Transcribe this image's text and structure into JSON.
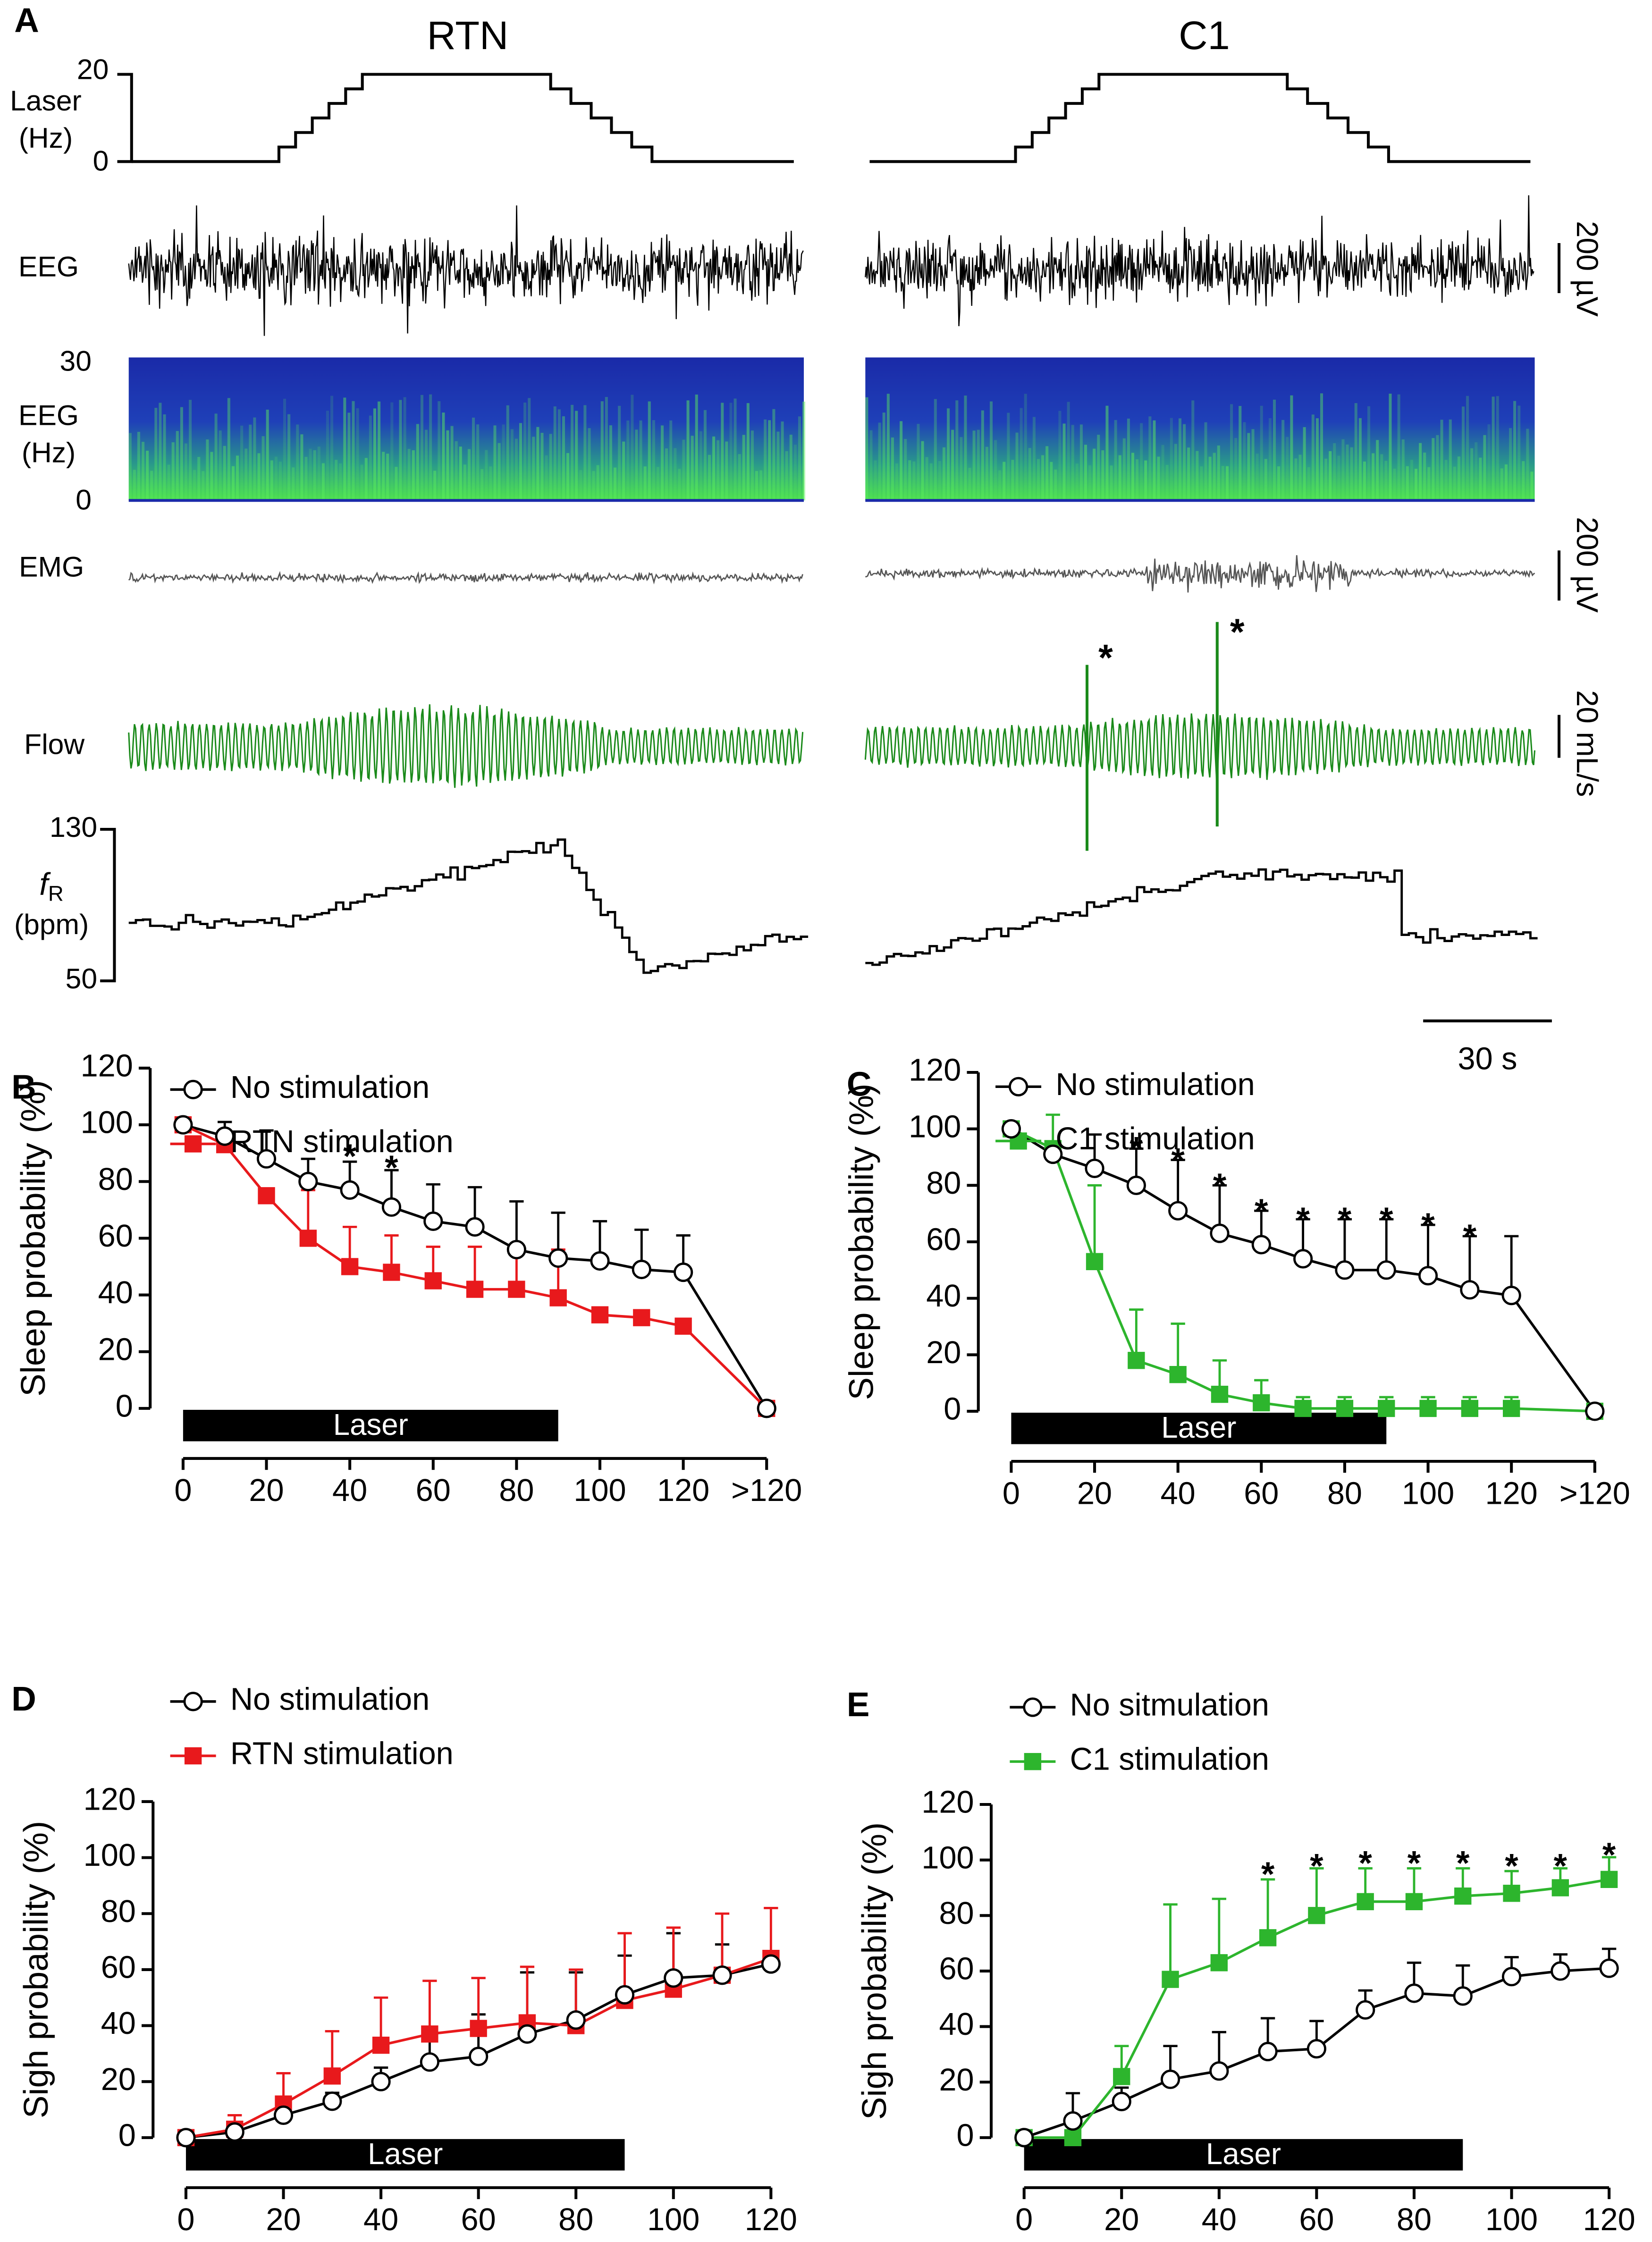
{
  "panel_a": {
    "letter": "A",
    "titles": [
      "RTN",
      "C1"
    ],
    "laser_label": [
      "Laser",
      "(Hz)"
    ],
    "laser_ticks": [
      "20",
      "0"
    ],
    "eeg_label": "EEG",
    "spec_label": [
      "EEG",
      "(Hz)"
    ],
    "spec_ticks": [
      "30",
      "0"
    ],
    "emg_label": "EMG",
    "flow_label": "Flow",
    "fr_label": [
      "f",
      "R",
      "(bpm)"
    ],
    "fr_ticks": [
      "130",
      "50"
    ],
    "eeg_scale": "200 µV",
    "emg_scale": "200 µV",
    "flow_scale": "20 mL/s",
    "time_scale": "30 s",
    "flow_marks": [
      "*",
      "*"
    ]
  },
  "chart_data": [
    {
      "type": "line",
      "panel": "B",
      "ylabel": "Sleep probability  (%)",
      "x": [
        0,
        10,
        20,
        30,
        40,
        50,
        60,
        70,
        80,
        90,
        100,
        110,
        120,
        140
      ],
      "xlim": [
        0,
        140
      ],
      "xticks": [
        0,
        20,
        40,
        60,
        80,
        100,
        120,
        {
          "value": 140,
          "label": ">120"
        }
      ],
      "ylim": [
        0,
        120
      ],
      "yticks": [
        0,
        20,
        40,
        60,
        80,
        100,
        120
      ],
      "laser": {
        "label": "Laser",
        "start": 0,
        "end": 90
      },
      "series": [
        {
          "name": "No stimulation",
          "color": "#000000",
          "marker": "circle",
          "values": [
            100,
            96,
            88,
            80,
            77,
            71,
            66,
            64,
            56,
            53,
            52,
            49,
            48,
            0
          ],
          "errors": [
            0,
            5,
            10,
            8,
            10,
            13,
            13,
            14,
            17,
            16,
            14,
            14,
            13,
            0
          ]
        },
        {
          "name": "RTN stimulation",
          "color": "#e8191c",
          "marker": "square",
          "values": [
            100,
            93,
            75,
            60,
            50,
            48,
            45,
            42,
            42,
            39,
            33,
            32,
            29,
            0
          ],
          "errors": [
            0,
            2,
            0,
            17,
            14,
            13,
            12,
            15,
            15,
            17,
            0,
            0,
            0,
            0
          ]
        }
      ],
      "annotations": [
        {
          "x": 40,
          "y": 91,
          "text": "*"
        },
        {
          "x": 50,
          "y": 87,
          "text": "*"
        }
      ]
    },
    {
      "type": "line",
      "panel": "C",
      "ylabel": "Sleep probability  (%)",
      "x": [
        0,
        10,
        20,
        30,
        40,
        50,
        60,
        70,
        80,
        90,
        100,
        110,
        120,
        140
      ],
      "xlim": [
        0,
        140
      ],
      "xticks": [
        0,
        20,
        40,
        60,
        80,
        100,
        120,
        {
          "value": 140,
          "label": ">120"
        }
      ],
      "ylim": [
        0,
        120
      ],
      "yticks": [
        0,
        20,
        40,
        60,
        80,
        100,
        120
      ],
      "laser": {
        "label": "Laser",
        "start": 0,
        "end": 90
      },
      "series": [
        {
          "name": "No stimulation",
          "color": "#000000",
          "marker": "circle",
          "values": [
            100,
            91,
            86,
            80,
            71,
            63,
            59,
            54,
            50,
            50,
            48,
            43,
            41,
            0
          ],
          "errors": [
            0,
            3,
            12,
            13,
            18,
            17,
            12,
            14,
            18,
            18,
            18,
            19,
            21,
            0
          ]
        },
        {
          "name": "C1 stimulation",
          "color": "#2db52d",
          "marker": "square",
          "values": [
            100,
            93,
            53,
            18,
            13,
            6,
            3,
            1,
            1,
            1,
            1,
            1,
            1,
            0
          ],
          "errors": [
            0,
            12,
            27,
            18,
            18,
            12,
            8,
            4,
            4,
            4,
            4,
            4,
            4,
            0
          ]
        }
      ],
      "annotations": [
        {
          "x": 30,
          "y": 95,
          "text": "*"
        },
        {
          "x": 40,
          "y": 91,
          "text": "*"
        },
        {
          "x": 50,
          "y": 82,
          "text": "*"
        },
        {
          "x": 60,
          "y": 73,
          "text": "*"
        },
        {
          "x": 70,
          "y": 70,
          "text": "*"
        },
        {
          "x": 80,
          "y": 70,
          "text": "*"
        },
        {
          "x": 90,
          "y": 70,
          "text": "*"
        },
        {
          "x": 100,
          "y": 68,
          "text": "*"
        },
        {
          "x": 110,
          "y": 64,
          "text": "*"
        }
      ]
    },
    {
      "type": "line",
      "panel": "D",
      "ylabel": "Sigh probability  (%)",
      "x": [
        0,
        10,
        20,
        30,
        40,
        50,
        60,
        70,
        80,
        90,
        100,
        110,
        120
      ],
      "xlim": [
        0,
        120
      ],
      "xticks": [
        0,
        20,
        40,
        60,
        80,
        100,
        120
      ],
      "ylim": [
        0,
        120
      ],
      "yticks": [
        0,
        20,
        40,
        60,
        80,
        100,
        120
      ],
      "laser": {
        "label": "Laser",
        "start": 0,
        "end": 90
      },
      "series": [
        {
          "name": "No stimulation",
          "color": "#000000",
          "marker": "circle",
          "values": [
            0,
            2,
            8,
            13,
            20,
            27,
            29,
            37,
            42,
            51,
            57,
            58,
            62
          ],
          "errors": [
            0,
            3,
            2,
            3,
            5,
            10,
            15,
            22,
            17,
            14,
            16,
            11,
            4
          ]
        },
        {
          "name": "RTN stimulation",
          "color": "#e8191c",
          "marker": "square",
          "values": [
            0,
            3,
            12,
            22,
            33,
            37,
            39,
            41,
            40,
            49,
            53,
            58,
            64
          ],
          "errors": [
            0,
            5,
            11,
            16,
            17,
            19,
            18,
            20,
            20,
            24,
            22,
            22,
            18
          ]
        }
      ],
      "annotations": []
    },
    {
      "type": "line",
      "panel": "E",
      "ylabel": "Sigh probability  (%)",
      "x": [
        0,
        10,
        20,
        30,
        40,
        50,
        60,
        70,
        80,
        90,
        100,
        110,
        120
      ],
      "xlim": [
        0,
        120
      ],
      "xticks": [
        0,
        20,
        40,
        60,
        80,
        100,
        120
      ],
      "ylim": [
        0,
        120
      ],
      "yticks": [
        0,
        20,
        40,
        60,
        80,
        100,
        120
      ],
      "laser": {
        "label": "Laser",
        "start": 0,
        "end": 90
      },
      "series": [
        {
          "name": "No sitmulation",
          "color": "#000000",
          "marker": "circle",
          "values": [
            0,
            6,
            13,
            21,
            24,
            31,
            32,
            46,
            52,
            51,
            58,
            60,
            61
          ],
          "errors": [
            0,
            10,
            5,
            12,
            14,
            12,
            10,
            7,
            11,
            11,
            7,
            6,
            7
          ]
        },
        {
          "name": "C1 stimulation",
          "color": "#2db52d",
          "marker": "square",
          "values": [
            0,
            0,
            22,
            57,
            63,
            72,
            80,
            85,
            85,
            87,
            88,
            90,
            93
          ],
          "errors": [
            0,
            0,
            11,
            27,
            23,
            21,
            17,
            12,
            12,
            10,
            8,
            7,
            8
          ]
        }
      ],
      "annotations": [
        {
          "x": 50,
          "y": 97,
          "text": "*"
        },
        {
          "x": 60,
          "y": 100,
          "text": "*"
        },
        {
          "x": 70,
          "y": 101,
          "text": "*"
        },
        {
          "x": 80,
          "y": 101,
          "text": "*"
        },
        {
          "x": 90,
          "y": 101,
          "text": "*"
        },
        {
          "x": 100,
          "y": 100,
          "text": "*"
        },
        {
          "x": 110,
          "y": 100,
          "text": "*"
        },
        {
          "x": 120,
          "y": 104,
          "text": "*"
        }
      ]
    }
  ]
}
